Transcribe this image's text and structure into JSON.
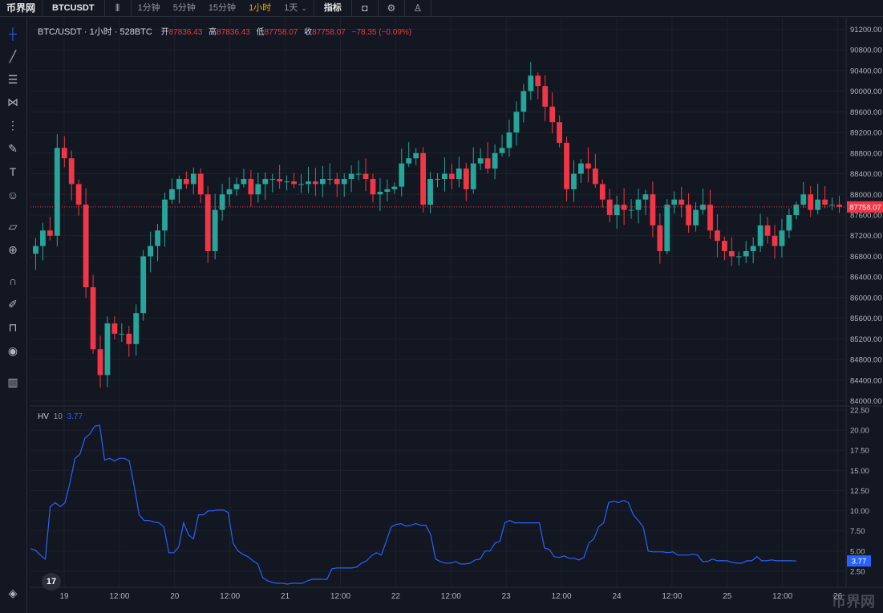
{
  "toolbar": {
    "logo": "币界网",
    "symbol": "BTCUSDT",
    "intervals": [
      "1分钟",
      "5分钟",
      "15分钟",
      "1小时",
      "1天"
    ],
    "active_interval": "1小时",
    "indicators_label": "指标"
  },
  "legend": {
    "symbol": "BTC/USDT · 1小时 · 528BTC",
    "open_label": "开",
    "open": "87836.43",
    "high_label": "高",
    "high": "87836.43",
    "low_label": "低",
    "low": "87758.07",
    "close_label": "收",
    "close": "87758.07",
    "change": "−78.35 (−0.09%)"
  },
  "hv_legend": {
    "name": "HV",
    "period": "10",
    "value": "3.77"
  },
  "watermark": "币界网",
  "tv_logo": "17",
  "icons": [
    "crosshair-icon",
    "trend-line-icon",
    "fib-icon",
    "pattern-icon",
    "measure-icon",
    "brush-icon",
    "text-icon",
    "emoji-icon",
    "ruler-icon",
    "zoom-icon",
    "magnet-icon",
    "lock-draw-icon",
    "lock-icon",
    "eye-icon",
    "trash-icon"
  ],
  "colors": {
    "up": "#26a69a",
    "down": "#f23645",
    "hv": "#2962ff",
    "accent": "#f7a600"
  },
  "chart_data": [
    {
      "type": "candlestick",
      "price_ticks": [
        91200,
        90800,
        90400,
        90000,
        89600,
        89200,
        88800,
        88400,
        88000,
        87600,
        87200,
        86800,
        86400,
        86000,
        85600,
        85200,
        84800,
        84400,
        84000
      ],
      "price_tick_labels": [
        "91200.00",
        "90800.00",
        "90400.00",
        "90000.00",
        "89600.00",
        "89200.00",
        "88800.00",
        "88400.00",
        "88000.00",
        "87600.00",
        "87200.00",
        "86800.00",
        "86400.00",
        "86000.00",
        "85600.00",
        "85200.00",
        "84800.00",
        "84400.00",
        "84000.00"
      ],
      "ylim": [
        83900,
        91300
      ],
      "last_price": 87758.07,
      "last_price_label": "87758.07",
      "x_tick_labels": [
        "19",
        "12:00",
        "20",
        "12:00",
        "21",
        "12:00",
        "22",
        "12:00",
        "23",
        "12:00",
        "24",
        "12:00",
        "25",
        "12:00",
        "26"
      ],
      "closes": [
        87000,
        87300,
        87200,
        88900,
        88700,
        88200,
        87800,
        86200,
        85000,
        84500,
        85500,
        85300,
        85300,
        85100,
        85700,
        86800,
        87000,
        87300,
        87900,
        88100,
        88300,
        88200,
        88400,
        88000,
        86900,
        87700,
        88000,
        88100,
        88200,
        88300,
        88000,
        88200,
        88300,
        88300,
        88250,
        88250,
        88200,
        88200,
        88250,
        88200,
        88300,
        88300,
        88200,
        88300,
        88400,
        88400,
        88300,
        88000,
        88050,
        88100,
        88150,
        88600,
        88700,
        88800,
        87800,
        88300,
        88300,
        88400,
        88300,
        88500,
        88100,
        88600,
        88700,
        88500,
        88800,
        88900,
        89200,
        89600,
        90000,
        90300,
        90100,
        89700,
        89400,
        89000,
        88100,
        88400,
        88600,
        88500,
        88200,
        87900,
        87600,
        87800,
        87700,
        87700,
        87900,
        88000,
        87400,
        86900,
        87800,
        87900,
        87800,
        87400,
        87700,
        87800,
        87300,
        87100,
        86900,
        86800,
        86800,
        86900,
        87000,
        87400,
        87200,
        87000,
        87300,
        87600,
        87800,
        88000,
        87700,
        87900,
        87800,
        87800,
        87758
      ],
      "hv_ticks": [
        22.5,
        20.0,
        17.5,
        15.0,
        12.5,
        10.0,
        7.5,
        5.0,
        2.5
      ],
      "hv_tick_labels": [
        "22.50",
        "20.00",
        "17.50",
        "15.00",
        "12.50",
        "10.00",
        "7.50",
        "5.00",
        "2.50"
      ],
      "hv_ylim": [
        0.5,
        22.5
      ],
      "hv_last_label": "3.77",
      "hv_values": [
        5.3,
        5.1,
        4.5,
        4.0,
        10.5,
        11.0,
        10.5,
        11.0,
        13.5,
        16.5,
        17.0,
        19.0,
        19.5,
        20.5,
        20.6,
        16.3,
        16.5,
        16.2,
        16.5,
        16.5,
        16.2,
        13.0,
        9.5,
        8.8,
        8.8,
        8.6,
        8.5,
        8.0,
        4.8,
        4.8,
        5.5,
        8.5,
        7.0,
        6.5,
        9.5,
        9.5,
        10.0,
        10.0,
        10.1,
        10.1,
        9.8,
        6.0,
        5.0,
        4.6,
        4.3,
        3.8,
        3.4,
        1.7,
        1.3,
        1.1,
        1.0,
        1.0,
        0.9,
        1.0,
        1.0,
        1.0,
        1.3,
        1.5,
        1.5,
        1.5,
        1.5,
        2.8,
        2.9,
        2.9,
        2.9,
        2.9,
        3.0,
        3.5,
        3.8,
        4.4,
        4.8,
        4.5,
        6.2,
        8.0,
        8.3,
        8.4,
        8.1,
        8.2,
        8.4,
        8.2,
        8.2,
        7.0,
        4.0,
        3.7,
        3.5,
        3.5,
        3.7,
        3.4,
        3.4,
        3.5,
        3.9,
        4.0,
        5.0,
        5.0,
        6.0,
        6.2,
        8.5,
        8.8,
        8.5,
        8.5,
        8.5,
        8.5,
        8.5,
        8.5,
        5.4,
        5.2,
        4.3,
        4.2,
        4.4,
        4.1,
        4.1,
        3.9,
        4.2,
        6.0,
        6.5,
        8.0,
        8.5,
        11.0,
        11.2,
        11.0,
        11.3,
        11.0,
        9.5,
        8.8,
        8.0,
        5.0,
        4.9,
        4.9,
        4.9,
        4.8,
        4.9,
        4.5,
        4.5,
        4.5,
        4.6,
        4.5,
        3.7,
        3.7,
        4.0,
        3.8,
        3.8,
        3.8,
        3.6,
        3.5,
        3.5,
        3.8,
        3.8,
        4.3,
        3.8,
        3.8,
        3.9,
        3.8,
        3.8,
        3.8,
        3.8,
        3.77
      ]
    }
  ]
}
